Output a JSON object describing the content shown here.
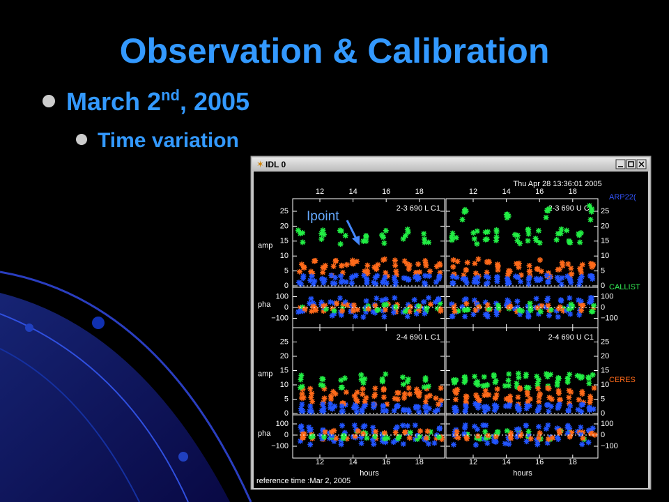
{
  "slide": {
    "title": "Observation & Calibration",
    "bullet": {
      "text": "March 2",
      "sup": "nd",
      "rest": ", 2005"
    },
    "sub_bullet": "Time variation"
  },
  "window": {
    "title": "IDL 0",
    "timestamp": "Thu Apr 28 13:36:01 2005",
    "hours_ticks": [
      12,
      14,
      16,
      18
    ],
    "amp_ticks": [
      0,
      5,
      10,
      15,
      20,
      25
    ],
    "pha_ticks": [
      100,
      0,
      {
        "value": -100,
        "label": "−100"
      }
    ],
    "axis_labels": {
      "amp": "amp",
      "pha": "pha",
      "x": "hours"
    },
    "panels": [
      {
        "label": "2-3 690 L C1"
      },
      {
        "label": "2-3 690 U C1"
      },
      {
        "label": "2-4 690 L C1"
      },
      {
        "label": "2-4 690 U C1"
      }
    ],
    "sources": [
      {
        "name": "ARP22(",
        "color": "#3355ff"
      },
      {
        "name": "CALLIST",
        "color": "#33ee55"
      },
      {
        "name": "CERES",
        "color": "#ff6a1a"
      }
    ],
    "reference_time": "reference time :Mar  2, 2005",
    "annotation": "Ipoint"
  }
}
